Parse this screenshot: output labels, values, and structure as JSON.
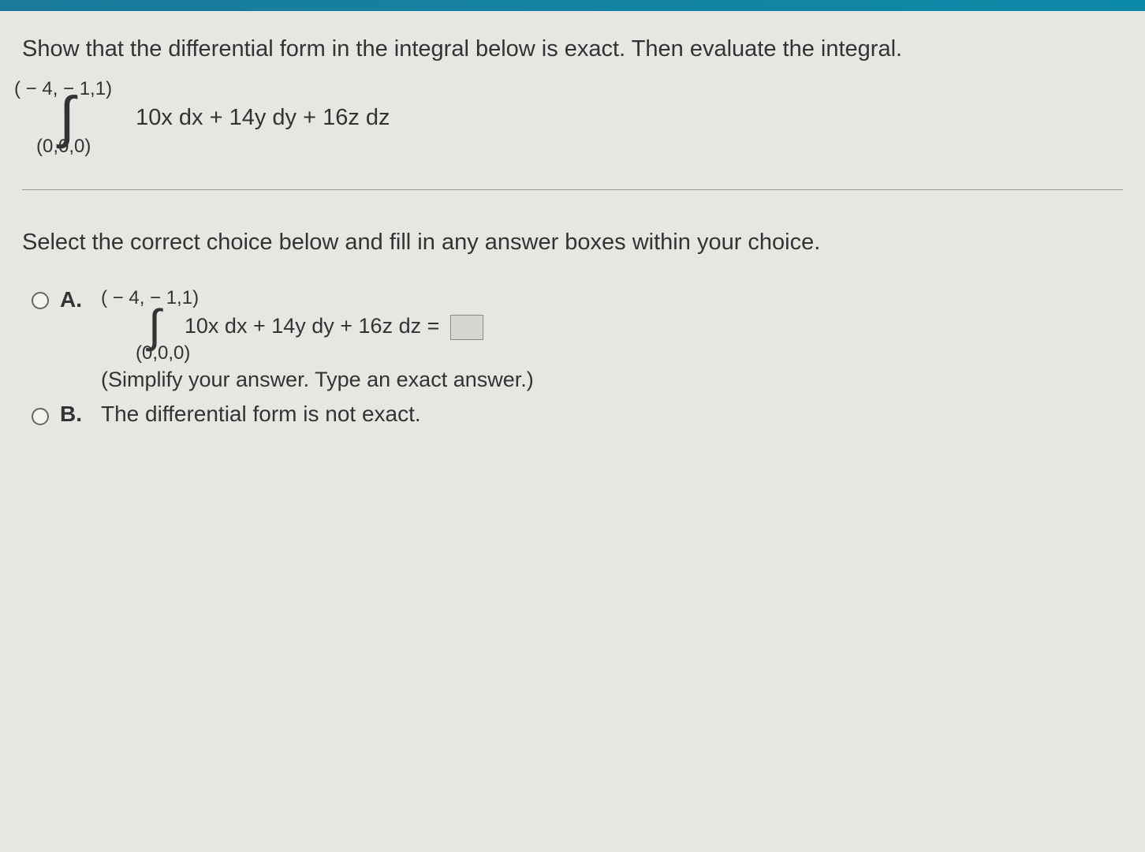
{
  "colors": {
    "top_bar_start": "#1a7a9a",
    "top_bar_end": "#0d8aa8",
    "background": "#e8e6e3",
    "text": "#333333",
    "divider": "#999999",
    "radio_border": "#666666",
    "answer_box_bg": "#d8d6d0",
    "answer_box_border": "#888888"
  },
  "question": {
    "prompt": "Show that the differential form in the integral below is exact. Then evaluate the integral.",
    "integral": {
      "upper_limit": "( − 4, − 1,1)",
      "lower_limit": "(0,0,0)",
      "integrand": "10x dx + 14y dy + 16z dz"
    }
  },
  "instruction": "Select the correct choice below and fill in any answer boxes within your choice.",
  "choices": {
    "a": {
      "label": "A.",
      "upper_limit": "( − 4, − 1,1)",
      "lower_limit": "(0,0,0)",
      "integrand_with_equals": "10x dx + 14y dy + 16z dz  =",
      "hint": "(Simplify your answer. Type an exact answer.)"
    },
    "b": {
      "label": "B.",
      "text": "The differential form is not exact."
    }
  }
}
